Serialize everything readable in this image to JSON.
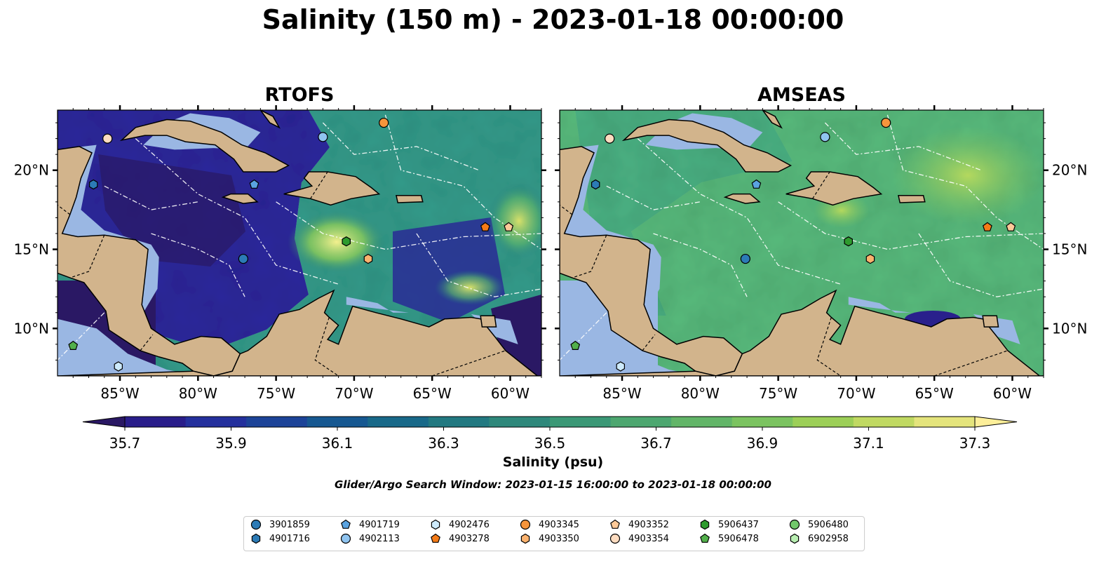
{
  "title": "Salinity (150 m) - 2023-01-18 00:00:00",
  "panels": [
    {
      "title": "RTOFS",
      "tone": "low"
    },
    {
      "title": "AMSEAS",
      "tone": "high"
    }
  ],
  "longitude_labels": [
    "85°W",
    "80°W",
    "75°W",
    "70°W",
    "65°W",
    "60°W"
  ],
  "longitude_values": [
    -85,
    -80,
    -75,
    -70,
    -65,
    -60
  ],
  "latitude_labels": [
    "20°N",
    "15°N",
    "10°N"
  ],
  "latitude_values": [
    20,
    15,
    10
  ],
  "map_extent": {
    "lon_min": -89,
    "lon_max": -58,
    "lat_min": 7,
    "lat_max": 23.8
  },
  "colorbar": {
    "title": "Salinity (psu)",
    "ticks": [
      "35.7",
      "35.9",
      "36.1",
      "36.3",
      "36.5",
      "36.7",
      "36.9",
      "37.1",
      "37.3"
    ],
    "min": 35.6,
    "max": 37.4,
    "step": 0.1,
    "extend": "both",
    "colormap": "haline",
    "colors": [
      "#2a1864",
      "#291d8a",
      "#24309d",
      "#1c4398",
      "#165891",
      "#186989",
      "#227981",
      "#2e887b",
      "#3b9876",
      "#4da770",
      "#62b568",
      "#7bc360",
      "#9ccf57",
      "#c0d962",
      "#e4e47c",
      "#fdef9a"
    ]
  },
  "search_window": "Glider/Argo Search Window: 2023-01-15 16:00:00 to 2023-01-18 00:00:00",
  "land_color": "#d2b48c",
  "shelf_color": "#9ab7e3",
  "floats": [
    {
      "id": "3901859",
      "marker": "circle",
      "color": "#2c7bb6",
      "lon": -77.1,
      "lat": 14.4
    },
    {
      "id": "4901716",
      "marker": "hexagon",
      "color": "#2c7bb6",
      "lon": -86.7,
      "lat": 19.1
    },
    {
      "id": "4901719",
      "marker": "pentagon",
      "color": "#5aa3e0",
      "lon": -76.4,
      "lat": 19.1
    },
    {
      "id": "4902113",
      "marker": "circle",
      "color": "#8fc4f0",
      "lon": -72.0,
      "lat": 22.1
    },
    {
      "id": "4902476",
      "marker": "hexagon",
      "color": "#cdeafc",
      "lon": -85.1,
      "lat": 7.6
    },
    {
      "id": "4903278",
      "marker": "pentagon",
      "color": "#f47b17",
      "lon": -61.6,
      "lat": 16.4
    },
    {
      "id": "4903345",
      "marker": "circle",
      "color": "#f6953c",
      "lon": -68.1,
      "lat": 23.0
    },
    {
      "id": "4903350",
      "marker": "hexagon",
      "color": "#fbb26e",
      "lon": -69.1,
      "lat": 14.4
    },
    {
      "id": "4903352",
      "marker": "pentagon",
      "color": "#fdc998",
      "lon": -60.1,
      "lat": 16.4
    },
    {
      "id": "4903354",
      "marker": "circle",
      "color": "#fddcc0",
      "lon": -85.8,
      "lat": 22.0
    },
    {
      "id": "5906437",
      "marker": "hexagon",
      "color": "#2e9b2e",
      "lon": -70.5,
      "lat": 15.5
    },
    {
      "id": "5906478",
      "marker": "pentagon",
      "color": "#52b04b",
      "lon": -88.0,
      "lat": 8.9
    },
    {
      "id": "5906480",
      "marker": "circle",
      "color": "#72c86b",
      "lon": 0,
      "lat": 0,
      "offmap": true
    },
    {
      "id": "6902958",
      "marker": "hexagon",
      "color": "#b9efb2",
      "lon": 0,
      "lat": 0,
      "offmap": true
    }
  ]
}
